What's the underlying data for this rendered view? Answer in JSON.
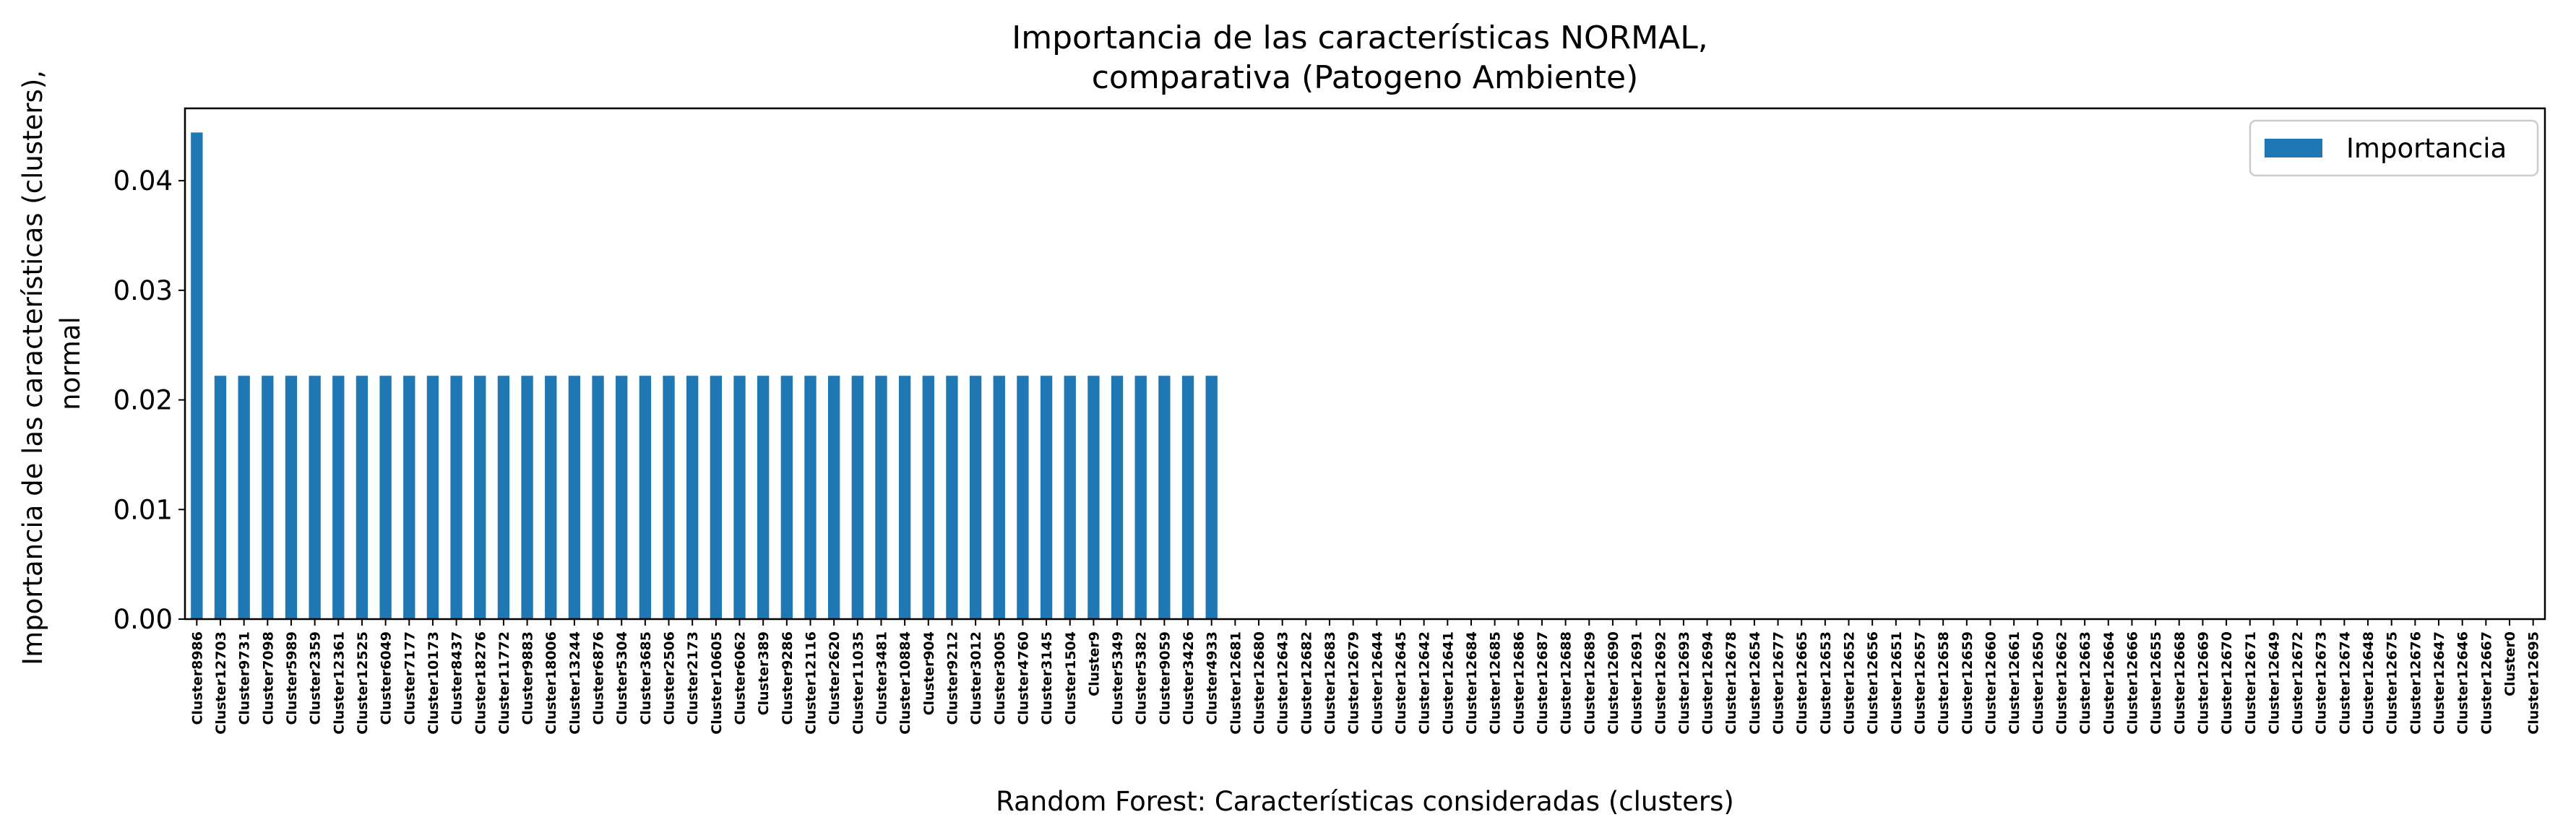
{
  "chart_data": {
    "type": "bar",
    "title": "Importancia de las características NORMAL,\ncomparativa (Patogeno Ambiente)",
    "xlabel": "Random Forest: Características consideradas (clusters)",
    "ylabel": "Importancia de las características (clusters),\nnormal",
    "ylim": [
      0,
      0.0466
    ],
    "yticks": [
      "0.00",
      "0.01",
      "0.02",
      "0.03",
      "0.04"
    ],
    "grid": false,
    "legend": {
      "position": "top-right"
    },
    "colors": {
      "bar": "#1f77b4",
      "axis": "#000000"
    },
    "series": [
      {
        "name": "Importancia"
      }
    ],
    "categories": [
      "Cluster8986",
      "Cluster12703",
      "Cluster9731",
      "Cluster7098",
      "Cluster5989",
      "Cluster2359",
      "Cluster12361",
      "Cluster12525",
      "Cluster6049",
      "Cluster7177",
      "Cluster10173",
      "Cluster8437",
      "Cluster18276",
      "Cluster11772",
      "Cluster9883",
      "Cluster18006",
      "Cluster13244",
      "Cluster6876",
      "Cluster5304",
      "Cluster3685",
      "Cluster2506",
      "Cluster2173",
      "Cluster10605",
      "Cluster6062",
      "Cluster389",
      "Cluster9286",
      "Cluster12116",
      "Cluster2620",
      "Cluster11035",
      "Cluster3481",
      "Cluster10884",
      "Cluster904",
      "Cluster9212",
      "Cluster3012",
      "Cluster3005",
      "Cluster4760",
      "Cluster3145",
      "Cluster1504",
      "Cluster9",
      "Cluster5349",
      "Cluster5382",
      "Cluster9059",
      "Cluster3426",
      "Cluster4933",
      "Cluster12681",
      "Cluster12680",
      "Cluster12643",
      "Cluster12682",
      "Cluster12683",
      "Cluster12679",
      "Cluster12644",
      "Cluster12645",
      "Cluster12642",
      "Cluster12641",
      "Cluster12684",
      "Cluster12685",
      "Cluster12686",
      "Cluster12687",
      "Cluster12688",
      "Cluster12689",
      "Cluster12690",
      "Cluster12691",
      "Cluster12692",
      "Cluster12693",
      "Cluster12694",
      "Cluster12678",
      "Cluster12654",
      "Cluster12677",
      "Cluster12665",
      "Cluster12653",
      "Cluster12652",
      "Cluster12656",
      "Cluster12651",
      "Cluster12657",
      "Cluster12658",
      "Cluster12659",
      "Cluster12660",
      "Cluster12661",
      "Cluster12650",
      "Cluster12662",
      "Cluster12663",
      "Cluster12664",
      "Cluster12666",
      "Cluster12655",
      "Cluster12668",
      "Cluster12669",
      "Cluster12670",
      "Cluster12671",
      "Cluster12649",
      "Cluster12672",
      "Cluster12673",
      "Cluster12674",
      "Cluster12648",
      "Cluster12675",
      "Cluster12676",
      "Cluster12647",
      "Cluster12646",
      "Cluster12667",
      "Cluster0",
      "Cluster12695"
    ],
    "values": [
      0.0444,
      0.0222,
      0.0222,
      0.0222,
      0.0222,
      0.0222,
      0.0222,
      0.0222,
      0.0222,
      0.0222,
      0.0222,
      0.0222,
      0.0222,
      0.0222,
      0.0222,
      0.0222,
      0.0222,
      0.0222,
      0.0222,
      0.0222,
      0.0222,
      0.0222,
      0.0222,
      0.0222,
      0.0222,
      0.0222,
      0.0222,
      0.0222,
      0.0222,
      0.0222,
      0.0222,
      0.0222,
      0.0222,
      0.0222,
      0.0222,
      0.0222,
      0.0222,
      0.0222,
      0.0222,
      0.0222,
      0.0222,
      0.0222,
      0.0222,
      0.0222,
      0,
      0,
      0,
      0,
      0,
      0,
      0,
      0,
      0,
      0,
      0,
      0,
      0,
      0,
      0,
      0,
      0,
      0,
      0,
      0,
      0,
      0,
      0,
      0,
      0,
      0,
      0,
      0,
      0,
      0,
      0,
      0,
      0,
      0,
      0,
      0,
      0,
      0,
      0,
      0,
      0,
      0,
      0,
      0,
      0,
      0,
      0,
      0,
      0,
      0,
      0,
      0,
      0,
      0,
      0,
      0
    ]
  }
}
